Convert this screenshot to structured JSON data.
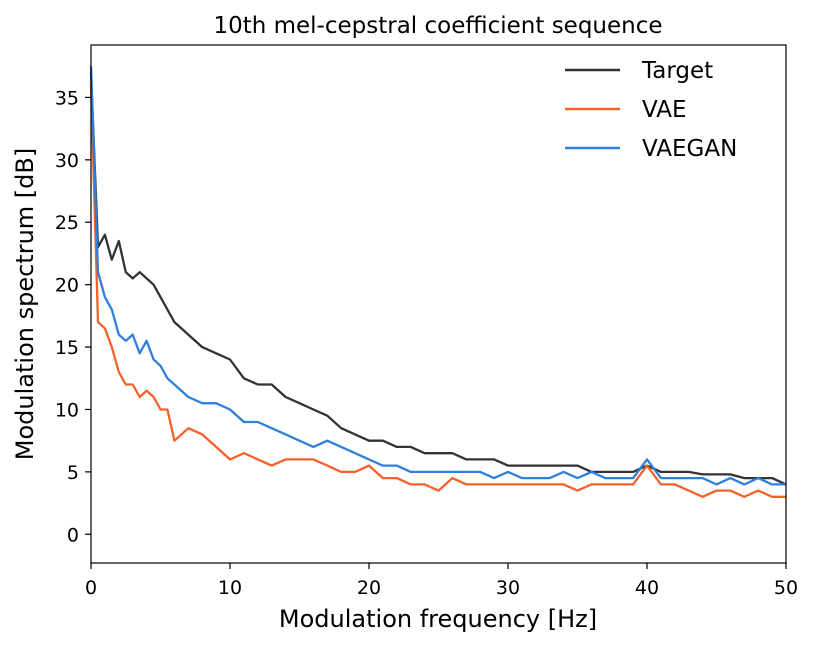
{
  "chart_data": {
    "type": "line",
    "title": "10th mel-cepstral coefficient sequence",
    "xlabel": "Modulation frequency [Hz]",
    "ylabel": "Modulation spectrum [dB]",
    "xlim": [
      0,
      50
    ],
    "ylim": [
      -2.3,
      39.2
    ],
    "xticks": [
      "0",
      "10",
      "20",
      "30",
      "40",
      "50"
    ],
    "yticks": [
      "0",
      "5",
      "10",
      "15",
      "20",
      "25",
      "30",
      "35"
    ],
    "grid": false,
    "legend_position": "top-right",
    "series": [
      {
        "name": "Target",
        "color": "#333333",
        "x": [
          0,
          0.5,
          1,
          1.5,
          2,
          2.5,
          3,
          3.5,
          4,
          4.5,
          5,
          5.5,
          6,
          7,
          8,
          9,
          10,
          11,
          12,
          13,
          14,
          15,
          16,
          17,
          18,
          19,
          20,
          21,
          22,
          23,
          24,
          25,
          26,
          27,
          28,
          29,
          30,
          31,
          32,
          33,
          34,
          35,
          36,
          37,
          38,
          39,
          40,
          41,
          42,
          43,
          44,
          45,
          46,
          47,
          48,
          49,
          50
        ],
        "values": [
          37,
          23,
          24,
          22,
          23.5,
          21,
          20.5,
          21,
          20.5,
          20,
          19,
          18,
          17,
          16,
          15,
          14.5,
          14,
          12.5,
          12,
          12,
          11,
          10.5,
          10,
          9.5,
          8.5,
          8,
          7.5,
          7.5,
          7,
          7,
          6.5,
          6.5,
          6.5,
          6,
          6,
          6,
          5.5,
          5.5,
          5.5,
          5.5,
          5.5,
          5.5,
          5,
          5,
          5,
          5,
          5.5,
          5,
          5,
          5,
          4.8,
          4.8,
          4.8,
          4.5,
          4.5,
          4.5,
          4
        ]
      },
      {
        "name": "VAE",
        "color": "#f4622a",
        "x": [
          0,
          0.5,
          1,
          1.5,
          2,
          2.5,
          3,
          3.5,
          4,
          4.5,
          5,
          5.5,
          6,
          7,
          8,
          9,
          10,
          11,
          12,
          13,
          14,
          15,
          16,
          17,
          18,
          19,
          20,
          21,
          22,
          23,
          24,
          25,
          26,
          27,
          28,
          29,
          30,
          31,
          32,
          33,
          34,
          35,
          36,
          37,
          38,
          39,
          40,
          41,
          42,
          43,
          44,
          45,
          46,
          47,
          48,
          49,
          50
        ],
        "values": [
          36,
          17,
          16.5,
          15,
          13,
          12,
          12,
          11,
          11.5,
          11,
          10,
          10,
          7.5,
          8.5,
          8,
          7,
          6,
          6.5,
          6,
          5.5,
          6,
          6,
          6,
          5.5,
          5,
          5,
          5.5,
          4.5,
          4.5,
          4,
          4,
          3.5,
          4.5,
          4,
          4,
          4,
          4,
          4,
          4,
          4,
          4,
          3.5,
          4,
          4,
          4,
          4,
          5.5,
          4,
          4,
          3.5,
          3,
          3.5,
          3.5,
          3,
          3.5,
          3,
          3
        ]
      },
      {
        "name": "VAEGAN",
        "color": "#2f7fdc",
        "x": [
          0,
          0.5,
          1,
          1.5,
          2,
          2.5,
          3,
          3.5,
          4,
          4.5,
          5,
          5.5,
          6,
          7,
          8,
          9,
          10,
          11,
          12,
          13,
          14,
          15,
          16,
          17,
          18,
          19,
          20,
          21,
          22,
          23,
          24,
          25,
          26,
          27,
          28,
          29,
          30,
          31,
          32,
          33,
          34,
          35,
          36,
          37,
          38,
          39,
          40,
          41,
          42,
          43,
          44,
          45,
          46,
          47,
          48,
          49,
          50
        ],
        "values": [
          37.5,
          21,
          19,
          18,
          16,
          15.5,
          16,
          14.5,
          15.5,
          14,
          13.5,
          12.5,
          12,
          11,
          10.5,
          10.5,
          10,
          9,
          9,
          8.5,
          8,
          7.5,
          7,
          7.5,
          7,
          6.5,
          6,
          5.5,
          5.5,
          5,
          5,
          5,
          5,
          5,
          5,
          4.5,
          5,
          4.5,
          4.5,
          4.5,
          5,
          4.5,
          5,
          4.5,
          4.5,
          4.5,
          6,
          4.5,
          4.5,
          4.5,
          4.5,
          4,
          4.5,
          4,
          4.5,
          4,
          4
        ]
      }
    ]
  }
}
